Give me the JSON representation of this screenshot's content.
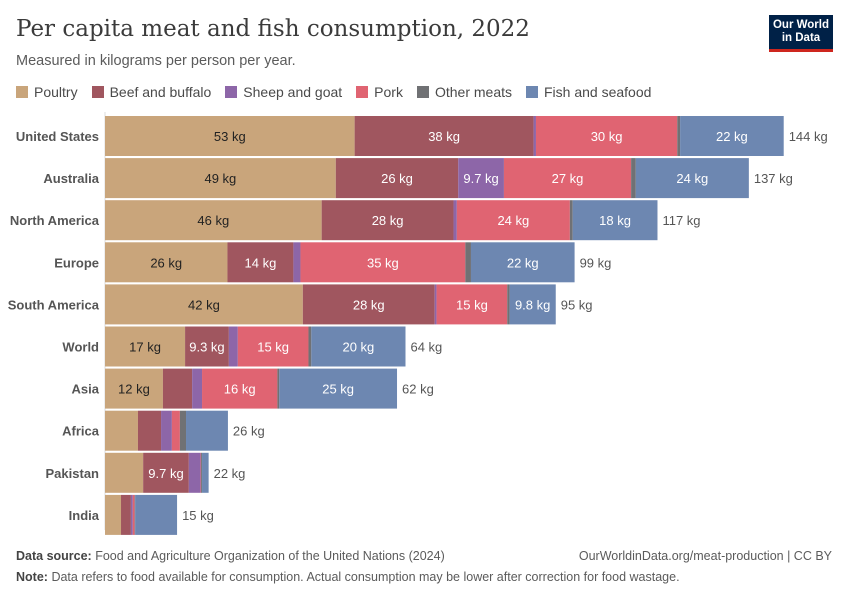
{
  "title": "Per capita meat and fish consumption, 2022",
  "subtitle": "Measured in kilograms per person per year.",
  "logo": "Our World in Data",
  "footer": {
    "source_label": "Data source:",
    "source": "Food and Agriculture Organization of the United Nations (2024)",
    "url": "OurWorldinData.org/meat-production | CC BY",
    "note_label": "Note:",
    "note": "Data refers to food available for consumption. Actual consumption may be lower after correction for food wastage."
  },
  "chart_data": {
    "type": "bar",
    "orientation": "horizontal",
    "stacked": true,
    "unit": "kg",
    "legend_position": "top",
    "grid": false,
    "categories": [
      "United States",
      "Australia",
      "North America",
      "Europe",
      "South America",
      "World",
      "Asia",
      "Africa",
      "Pakistan",
      "India"
    ],
    "totals": [
      "144 kg",
      "137 kg",
      "117 kg",
      "99 kg",
      "95 kg",
      "64 kg",
      "62 kg",
      "26 kg",
      "22 kg",
      "15 kg"
    ],
    "series": [
      {
        "name": "Poultry",
        "color": "#C9A57B",
        "values": [
          53,
          49,
          46,
          26,
          42,
          17,
          12.3,
          7.0,
          8.1,
          3.4
        ],
        "labels": [
          "53 kg",
          "49 kg",
          "46 kg",
          "26 kg",
          "42 kg",
          "17 kg",
          "12 kg",
          null,
          null,
          null
        ]
      },
      {
        "name": "Beef and buffalo",
        "color": "#A0565F",
        "values": [
          38,
          26,
          28,
          14,
          28,
          9.3,
          6.2,
          4.9,
          9.7,
          2.1
        ],
        "labels": [
          "38 kg",
          "26 kg",
          "28 kg",
          "14 kg",
          "28 kg",
          "9.3 kg",
          null,
          null,
          "9.7 kg",
          null
        ]
      },
      {
        "name": "Sheep and goat",
        "color": "#8D66A8",
        "values": [
          0.5,
          9.7,
          0.7,
          1.5,
          0.4,
          1.9,
          2.1,
          2.3,
          2.5,
          0.4
        ],
        "labels": [
          null,
          "9.7 kg",
          null,
          null,
          null,
          null,
          null,
          null,
          null,
          null
        ]
      },
      {
        "name": "Pork",
        "color": "#E06472",
        "values": [
          30,
          27,
          24,
          35,
          15,
          15,
          16,
          1.7,
          0.1,
          0.4
        ],
        "labels": [
          "30 kg",
          "27 kg",
          "24 kg",
          "35 kg",
          "15 kg",
          "15 kg",
          "16 kg",
          null,
          null,
          null
        ]
      },
      {
        "name": "Other meats",
        "color": "#707174",
        "values": [
          0.6,
          1,
          0.6,
          1.2,
          0.5,
          0.6,
          0.4,
          1.3,
          0.2,
          0.1
        ],
        "labels": [
          null,
          null,
          null,
          null,
          null,
          null,
          null,
          null,
          null,
          null
        ]
      },
      {
        "name": "Fish and seafood",
        "color": "#6D87B1",
        "values": [
          22,
          24,
          18,
          22,
          9.8,
          20,
          25,
          8.9,
          1.4,
          8.9
        ],
        "labels": [
          "22 kg",
          "24 kg",
          "18 kg",
          "22 kg",
          "9.8 kg",
          "20 kg",
          "25 kg",
          null,
          null,
          null
        ]
      }
    ]
  }
}
